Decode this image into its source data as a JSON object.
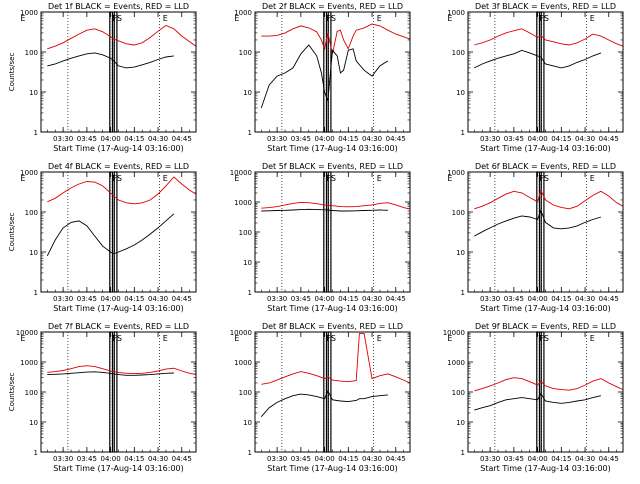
{
  "figure": {
    "xlabel": "Start Time (17-Aug-14 03:16:00)",
    "ylabel": "Counts/sec",
    "xticks": [
      "03:30",
      "03:45",
      "04:00",
      "04:15",
      "04:30",
      "04:45"
    ],
    "xtick_minutes": [
      30,
      45,
      60,
      75,
      90,
      105
    ],
    "series_colors": {
      "events": "#000000",
      "lld": "#dd0000"
    },
    "flag_letters": [
      "E",
      "F",
      "S",
      "E"
    ]
  },
  "chart_data": [
    {
      "type": "line",
      "title": "Det 1f BLACK = Events, RED = LLD",
      "ylog": true,
      "ylim": [
        1,
        1000
      ],
      "yticks": [
        1,
        10,
        100,
        1000
      ],
      "ytick_labels": [
        "1",
        "10",
        "100",
        "1000"
      ],
      "x": [
        16,
        20,
        25,
        30,
        35,
        40,
        45,
        50,
        55,
        60,
        62,
        65,
        70,
        75,
        80,
        85,
        90,
        95,
        100,
        105,
        110,
        114
      ],
      "series": [
        {
          "key": "lld",
          "values": [
            null,
            120,
            140,
            170,
            220,
            280,
            350,
            380,
            320,
            240,
            210,
            190,
            160,
            150,
            170,
            230,
            330,
            460,
            380,
            250,
            180,
            140
          ]
        },
        {
          "key": "events",
          "values": [
            null,
            45,
            50,
            60,
            70,
            80,
            90,
            95,
            85,
            70,
            60,
            45,
            40,
            42,
            48,
            55,
            65,
            75,
            80,
            null,
            null,
            null
          ]
        }
      ]
    },
    {
      "type": "line",
      "title": "Det 2f BLACK = Events, RED = LLD",
      "ylog": true,
      "ylim": [
        1,
        1000
      ],
      "yticks": [
        1,
        10,
        100,
        1000
      ],
      "ytick_labels": [
        "1",
        "10",
        "100",
        "1000"
      ],
      "x": [
        16,
        20,
        25,
        30,
        35,
        40,
        45,
        50,
        55,
        58,
        60,
        62,
        65,
        68,
        70,
        72,
        75,
        78,
        80,
        85,
        90,
        95,
        100,
        105,
        110,
        114
      ],
      "series": [
        {
          "key": "lld",
          "values": [
            null,
            250,
            250,
            260,
            300,
            380,
            450,
            400,
            320,
            200,
            120,
            300,
            90,
            330,
            350,
            200,
            120,
            250,
            350,
            400,
            500,
            450,
            350,
            280,
            240,
            210
          ]
        },
        {
          "key": "events",
          "values": [
            null,
            4,
            15,
            25,
            30,
            40,
            90,
            150,
            80,
            30,
            10,
            6,
            110,
            80,
            30,
            35,
            110,
            120,
            60,
            35,
            25,
            45,
            60,
            null,
            null,
            null
          ]
        }
      ]
    },
    {
      "type": "line",
      "title": "Det 3f BLACK = Events, RED = LLD",
      "ylog": true,
      "ylim": [
        1,
        1000
      ],
      "yticks": [
        1,
        10,
        100,
        1000
      ],
      "ytick_labels": [
        "1",
        "10",
        "100",
        "1000"
      ],
      "x": [
        16,
        20,
        25,
        30,
        35,
        40,
        45,
        50,
        55,
        60,
        62,
        65,
        70,
        75,
        80,
        85,
        90,
        95,
        100,
        105,
        110,
        114
      ],
      "series": [
        {
          "key": "lld",
          "values": [
            null,
            150,
            170,
            200,
            250,
            300,
            340,
            380,
            300,
            230,
            260,
            200,
            180,
            160,
            150,
            170,
            210,
            280,
            250,
            200,
            160,
            140
          ]
        },
        {
          "key": "events",
          "values": [
            null,
            40,
            50,
            60,
            70,
            80,
            90,
            110,
            95,
            80,
            75,
            50,
            45,
            40,
            45,
            55,
            65,
            80,
            95,
            null,
            null,
            null
          ]
        }
      ]
    },
    {
      "type": "line",
      "title": "Det 4f BLACK = Events, RED = LLD",
      "ylog": true,
      "ylim": [
        1,
        1000
      ],
      "yticks": [
        1,
        10,
        100,
        1000
      ],
      "ytick_labels": [
        "1",
        "10",
        "100",
        "1000"
      ],
      "x": [
        16,
        20,
        25,
        30,
        35,
        40,
        45,
        50,
        55,
        60,
        62,
        65,
        70,
        75,
        80,
        85,
        90,
        95,
        100,
        105,
        110,
        114
      ],
      "series": [
        {
          "key": "lld",
          "values": [
            null,
            180,
            220,
            300,
            400,
            500,
            580,
            560,
            450,
            300,
            250,
            200,
            170,
            160,
            170,
            200,
            280,
            450,
            750,
            500,
            350,
            280
          ]
        },
        {
          "key": "events",
          "values": [
            null,
            8,
            20,
            40,
            55,
            60,
            45,
            25,
            14,
            10,
            9,
            10,
            12,
            15,
            20,
            28,
            40,
            60,
            90,
            null,
            null,
            null
          ]
        }
      ]
    },
    {
      "type": "line",
      "title": "Det 5f BLACK = Events, RED = LLD",
      "ylog": true,
      "ylim": [
        1,
        10000
      ],
      "yticks": [
        1,
        10,
        100,
        1000,
        10000
      ],
      "ytick_labels": [
        "1",
        "10",
        "100",
        "1000",
        "10000"
      ],
      "x": [
        16,
        20,
        25,
        30,
        35,
        40,
        45,
        50,
        55,
        60,
        62,
        65,
        70,
        75,
        80,
        85,
        90,
        95,
        100,
        105,
        110,
        114
      ],
      "series": [
        {
          "key": "lld",
          "values": [
            null,
            620,
            650,
            700,
            800,
            900,
            980,
            950,
            880,
            800,
            780,
            750,
            700,
            690,
            700,
            750,
            800,
            900,
            950,
            800,
            650,
            580
          ]
        },
        {
          "key": "events",
          "values": [
            null,
            500,
            510,
            520,
            530,
            540,
            560,
            570,
            560,
            550,
            540,
            520,
            500,
            500,
            510,
            520,
            530,
            540,
            530,
            null,
            null,
            null
          ]
        }
      ]
    },
    {
      "type": "line",
      "title": "Det 6f BLACK = Events, RED = LLD",
      "ylog": true,
      "ylim": [
        1,
        1000
      ],
      "yticks": [
        1,
        10,
        100,
        1000
      ],
      "ytick_labels": [
        "1",
        "10",
        "100",
        "1000"
      ],
      "x": [
        16,
        20,
        25,
        30,
        35,
        40,
        45,
        50,
        55,
        60,
        62,
        65,
        70,
        75,
        80,
        85,
        90,
        95,
        100,
        105,
        110,
        114
      ],
      "series": [
        {
          "key": "lld",
          "values": [
            null,
            120,
            140,
            170,
            220,
            280,
            330,
            300,
            230,
            180,
            350,
            200,
            150,
            130,
            120,
            140,
            190,
            260,
            330,
            250,
            170,
            140
          ]
        },
        {
          "key": "events",
          "values": [
            null,
            25,
            32,
            40,
            50,
            60,
            70,
            80,
            75,
            65,
            110,
            55,
            40,
            38,
            40,
            45,
            55,
            65,
            75,
            null,
            null,
            null
          ]
        }
      ]
    },
    {
      "type": "line",
      "title": "Det 7f BLACK = Events, RED = LLD",
      "ylog": true,
      "ylim": [
        1,
        10000
      ],
      "yticks": [
        1,
        10,
        100,
        1000,
        10000
      ],
      "ytick_labels": [
        "1",
        "10",
        "100",
        "1000",
        "10000"
      ],
      "x": [
        16,
        20,
        25,
        30,
        35,
        40,
        45,
        50,
        55,
        60,
        62,
        65,
        70,
        75,
        80,
        85,
        90,
        95,
        100,
        105,
        110,
        114
      ],
      "series": [
        {
          "key": "lld",
          "values": [
            null,
            450,
            480,
            520,
            600,
            700,
            750,
            700,
            600,
            500,
            480,
            450,
            420,
            410,
            420,
            450,
            500,
            580,
            620,
            500,
            420,
            380
          ]
        },
        {
          "key": "events",
          "values": [
            null,
            380,
            390,
            400,
            420,
            440,
            460,
            470,
            450,
            420,
            400,
            380,
            360,
            360,
            370,
            380,
            400,
            420,
            430,
            null,
            null,
            null
          ]
        }
      ]
    },
    {
      "type": "line",
      "title": "Det 8f BLACK = Events, RED = LLD",
      "ylog": true,
      "ylim": [
        1,
        10000
      ],
      "yticks": [
        1,
        10,
        100,
        1000,
        10000
      ],
      "ytick_labels": [
        "1",
        "10",
        "100",
        "1000",
        "10000"
      ],
      "x": [
        16,
        20,
        25,
        30,
        35,
        40,
        45,
        50,
        55,
        60,
        62,
        65,
        70,
        75,
        80,
        82,
        85,
        90,
        95,
        100,
        105,
        110,
        114
      ],
      "series": [
        {
          "key": "lld",
          "values": [
            null,
            180,
            200,
            250,
            320,
            400,
            480,
            420,
            350,
            280,
            320,
            250,
            230,
            220,
            240,
            9000,
            9000,
            280,
            350,
            400,
            320,
            250,
            200
          ]
        },
        {
          "key": "events",
          "values": [
            null,
            15,
            30,
            45,
            60,
            75,
            85,
            80,
            70,
            60,
            110,
            55,
            50,
            48,
            52,
            60,
            60,
            70,
            75,
            80,
            null,
            null,
            null
          ]
        }
      ]
    },
    {
      "type": "line",
      "title": "Det 9f BLACK = Events, RED = LLD",
      "ylog": true,
      "ylim": [
        1,
        10000
      ],
      "yticks": [
        1,
        10,
        100,
        1000,
        10000
      ],
      "ytick_labels": [
        "1",
        "10",
        "100",
        "1000",
        "10000"
      ],
      "x": [
        16,
        20,
        25,
        30,
        35,
        40,
        45,
        50,
        55,
        60,
        62,
        65,
        70,
        75,
        80,
        85,
        90,
        95,
        100,
        105,
        110,
        114
      ],
      "series": [
        {
          "key": "lld",
          "values": [
            null,
            110,
            130,
            160,
            200,
            260,
            300,
            280,
            220,
            170,
            230,
            160,
            130,
            120,
            115,
            130,
            170,
            230,
            280,
            200,
            150,
            120
          ]
        },
        {
          "key": "events",
          "values": [
            null,
            25,
            30,
            35,
            45,
            55,
            60,
            65,
            60,
            55,
            90,
            50,
            45,
            42,
            45,
            50,
            55,
            65,
            75,
            null,
            null,
            null
          ]
        }
      ]
    }
  ]
}
